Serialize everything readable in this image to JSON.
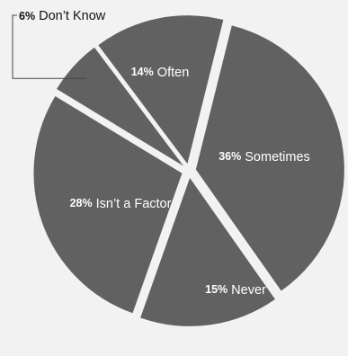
{
  "chart_data": {
    "type": "pie",
    "title": "",
    "start_angle_deg": 14,
    "direction": "clockwise",
    "exploded": true,
    "legend": "none",
    "slice_color": "#616161",
    "slice_label_color": "#ffffff",
    "external_label_color": "#111111",
    "background_color": "#f2f2f2",
    "slices": [
      {
        "label": "Sometimes",
        "percent_text": "36%",
        "value": 36
      },
      {
        "label": "Never",
        "percent_text": "15%",
        "value": 15
      },
      {
        "label": "Isn’t a Factor",
        "percent_text": "28%",
        "value": 28
      },
      {
        "label": "Don’t Know",
        "percent_text": "6%",
        "value": 6,
        "label_position": "outside"
      },
      {
        "label": "Often",
        "percent_text": "14%",
        "value": 14
      }
    ]
  }
}
